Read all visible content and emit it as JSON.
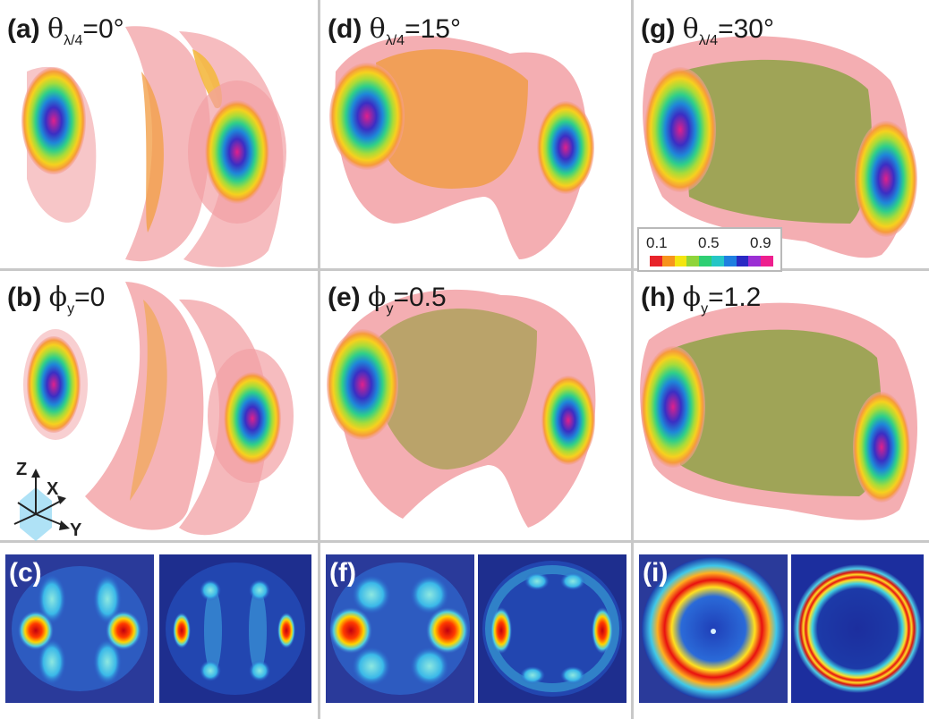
{
  "panels": {
    "a": {
      "letter": "(a)",
      "symbol": "θ",
      "sub": "λ/4",
      "value": "=0°"
    },
    "b": {
      "letter": "(b)",
      "symbol": "ϕ",
      "sub": "y",
      "value": "=0"
    },
    "c": {
      "letter": "(c)"
    },
    "d": {
      "letter": "(d)",
      "symbol": "θ",
      "sub": "λ/4",
      "value": "=15°"
    },
    "e": {
      "letter": "(e)",
      "symbol": "ϕ",
      "sub": "y",
      "value": "=0.5"
    },
    "f": {
      "letter": "(f)"
    },
    "g": {
      "letter": "(g)",
      "symbol": "θ",
      "sub": "λ/4",
      "value": "=30°"
    },
    "h": {
      "letter": "(h)",
      "symbol": "ϕ",
      "sub": "y",
      "value": "=1.2"
    },
    "i": {
      "letter": "(i)"
    }
  },
  "colorbar": {
    "ticks": [
      "0.1",
      "0.5",
      "0.9"
    ],
    "colors": [
      "#e8232a",
      "#f7941d",
      "#f4e50f",
      "#8fd43a",
      "#2fcf73",
      "#25c6c6",
      "#1f7fe0",
      "#2a2ac4",
      "#9b2fd4",
      "#ee1f8e"
    ]
  },
  "axes": {
    "z": "Z",
    "x": "X",
    "y": "Y"
  }
}
